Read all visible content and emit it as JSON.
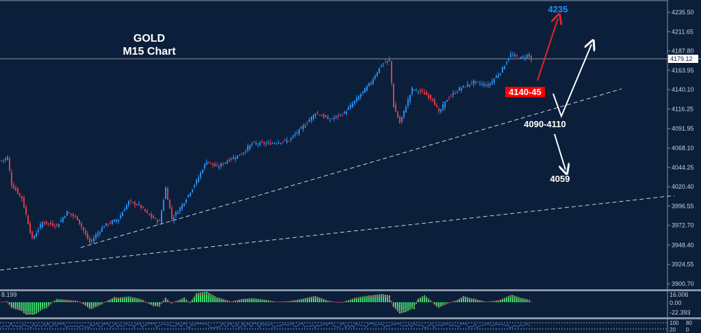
{
  "chart_data": {
    "type": "candlestick",
    "title": "GOLD",
    "subtitle": "M15 Chart",
    "y_ticks": [
      "4235.50",
      "4211.65",
      "4187.80",
      "4163.95",
      "4140.10",
      "4116.25",
      "4091.95",
      "4068.10",
      "4044.25",
      "4020.40",
      "3996.55",
      "3972.70",
      "3948.40",
      "3924.55",
      "3900.70"
    ],
    "ylim": [
      3900.7,
      4235.5
    ],
    "current_price": "4179.12",
    "price_path": {
      "bar_index": [
        0,
        3,
        5,
        10,
        15,
        20,
        27,
        32,
        37,
        43,
        50,
        57,
        62,
        67,
        72,
        77,
        80,
        83,
        88,
        95,
        100,
        105,
        110,
        117,
        122,
        130,
        140,
        147,
        153,
        160,
        167,
        173,
        180,
        185,
        189,
        191,
        194,
        197,
        200,
        205,
        210,
        213,
        217,
        223,
        230,
        237,
        243,
        248,
        253,
        257,
        258
      ],
      "close": [
        4052.5,
        4056.7,
        4023.0,
        4006.1,
        3955.5,
        3976.6,
        3972.4,
        3989.3,
        3980.8,
        3951.3,
        3972.4,
        3980.8,
        4001.9,
        3997.7,
        3985.0,
        3976.6,
        4018.8,
        3980.8,
        3997.7,
        4027.2,
        4052.5,
        4044.1,
        4052.5,
        4060.9,
        4073.6,
        4073.6,
        4077.8,
        4094.7,
        4111.5,
        4103.1,
        4111.5,
        4128.4,
        4149.5,
        4170.6,
        4176.5,
        4120.0,
        4098.9,
        4120.0,
        4141.1,
        4136.8,
        4128.4,
        4111.5,
        4128.4,
        4141.1,
        4149.5,
        4145.3,
        4162.1,
        4183.2,
        4179.0,
        4183.2,
        4176.5
      ]
    },
    "annotations": {
      "target_high": "4235",
      "resistance_zone": "4140-45",
      "support_zone": "4090-4110",
      "target_low": "4059"
    },
    "indicator1": {
      "max_label": "16.006",
      "zero_label": "0.00",
      "min_label": "-22.393",
      "left_value": "8.199"
    },
    "indicator2": {
      "levels": [
        "100",
        "80",
        "20",
        "0"
      ]
    },
    "colors": {
      "background": "#0b1f3a",
      "bull": "#2b8cf0",
      "bear": "#e03a48",
      "target_high": "#2b8cf0",
      "resistance_bg": "#ff0000",
      "histogram": "#3ddc6e",
      "signal": "#b0304a"
    }
  }
}
